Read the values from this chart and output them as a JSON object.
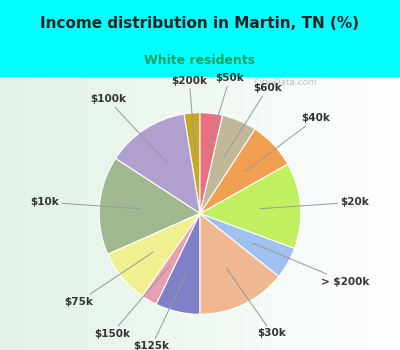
{
  "title": "Income distribution in Martin, TN (%)",
  "subtitle": "White residents",
  "bg_color": "#00ffff",
  "chart_bg_color": "#e8f5f0",
  "labels": [
    "$200k",
    "$100k",
    "$10k",
    "$75k",
    "$150k",
    "$125k",
    "$30k",
    "> $200k",
    "$20k",
    "$40k",
    "$60k",
    "$50k"
  ],
  "sizes": [
    2.5,
    13.0,
    15.5,
    8.5,
    2.5,
    7.0,
    14.0,
    5.0,
    13.5,
    7.5,
    5.5,
    3.5
  ],
  "colors": [
    "#c8a820",
    "#b0a0d0",
    "#a0b890",
    "#f0f090",
    "#e8a0b0",
    "#8080c8",
    "#f0b890",
    "#a0c0f0",
    "#c0f060",
    "#f0a050",
    "#c0b898",
    "#e87080"
  ],
  "startangle": 90,
  "title_fontsize": 11,
  "subtitle_fontsize": 9,
  "title_color": "#222222",
  "subtitle_color": "#20a060",
  "label_fontsize": 7.5,
  "watermark": "City-Data.com"
}
